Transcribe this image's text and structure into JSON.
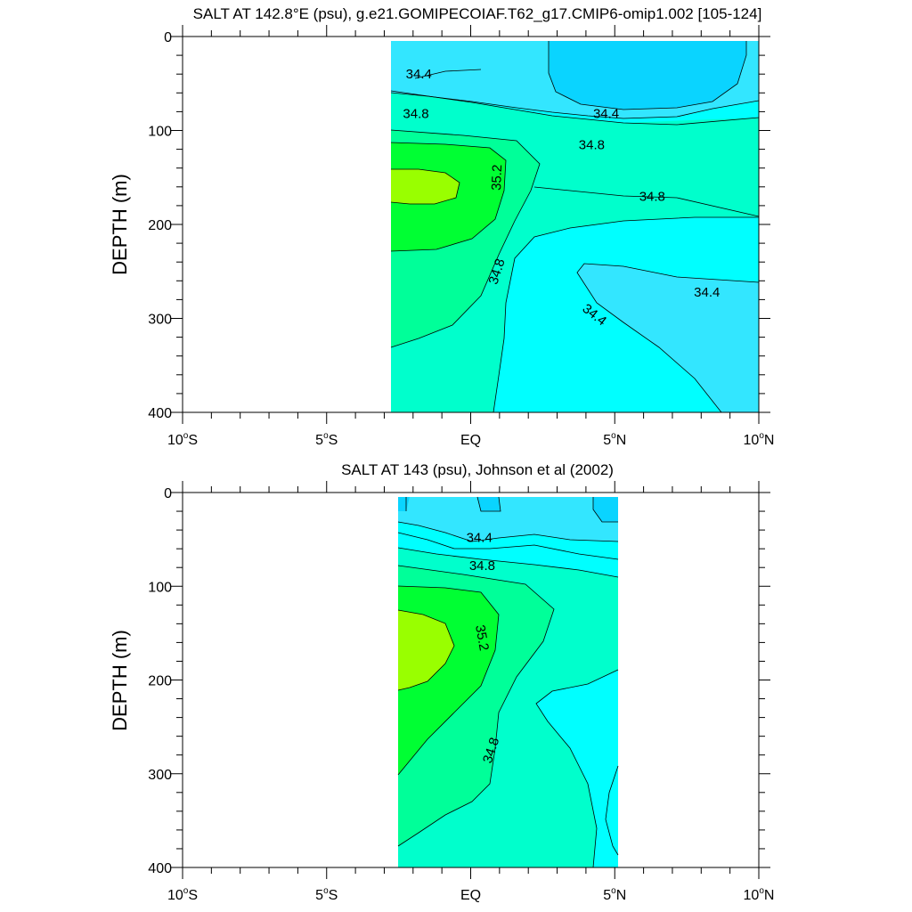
{
  "chart_data": [
    {
      "type": "contour",
      "title": "SALT AT 142.8°E (psu), g.e21.GOMIPECOIAF.T62_g17.CMIP6-omip1.002 [105-124]",
      "xlabel": "",
      "ylabel": "DEPTH (m)",
      "xlim": [
        -10,
        10
      ],
      "ylim": [
        400,
        0
      ],
      "data_extent_x": [
        -3,
        10
      ],
      "x_ticks": [
        {
          "value": -10,
          "deg": "10",
          "hemi": "S"
        },
        {
          "value": -5,
          "deg": "5",
          "hemi": "S"
        },
        {
          "value": 0,
          "deg": "",
          "hemi": "EQ"
        },
        {
          "value": 5,
          "deg": "5",
          "hemi": "N"
        },
        {
          "value": 10,
          "deg": "10",
          "hemi": "N"
        }
      ],
      "y_ticks": [
        0,
        100,
        200,
        300,
        400
      ],
      "fill_colors": {
        "34.2_34.4": "#0ad4ff",
        "34.4_34.6": "#33e6ff",
        "34.6_34.8": "#00ffff",
        "34.8_35.0": "#00ffcc",
        "35.0_35.2": "#00ff99",
        "35.2_35.4": "#00ff33",
        "35.4_35.6": "#99ff00"
      },
      "contour_labels": [
        {
          "text": "34.4",
          "x": -1.8,
          "y": 40,
          "angle": 0
        },
        {
          "text": "34.8",
          "x": -1.9,
          "y": 82,
          "angle": 0
        },
        {
          "text": "34.4",
          "x": 4.7,
          "y": 82,
          "angle": 0
        },
        {
          "text": "34.8",
          "x": 4.2,
          "y": 115,
          "angle": 0
        },
        {
          "text": "35.2",
          "x": 0.9,
          "y": 150,
          "angle": -88
        },
        {
          "text": "34.8",
          "x": 6.3,
          "y": 170,
          "angle": 0
        },
        {
          "text": "34.8",
          "x": 0.9,
          "y": 250,
          "angle": -72
        },
        {
          "text": "34.4",
          "x": 8.2,
          "y": 272,
          "angle": 0
        },
        {
          "text": "34.4",
          "x": 4.3,
          "y": 296,
          "angle": 38
        }
      ]
    },
    {
      "type": "contour",
      "title": "SALT AT 143 (psu), Johnson et al (2002)",
      "xlabel": "",
      "ylabel": "DEPTH (m)",
      "xlim": [
        -10,
        10
      ],
      "ylim": [
        400,
        0
      ],
      "data_extent_x": [
        -2.75,
        5
      ],
      "x_ticks": [
        {
          "value": -10,
          "deg": "10",
          "hemi": "S"
        },
        {
          "value": -5,
          "deg": "5",
          "hemi": "S"
        },
        {
          "value": 0,
          "deg": "",
          "hemi": "EQ"
        },
        {
          "value": 5,
          "deg": "5",
          "hemi": "N"
        },
        {
          "value": 10,
          "deg": "10",
          "hemi": "N"
        }
      ],
      "y_ticks": [
        0,
        100,
        200,
        300,
        400
      ],
      "contour_labels": [
        {
          "text": "34.4",
          "x": 0.3,
          "y": 48,
          "angle": 0
        },
        {
          "text": "34.8",
          "x": 0.4,
          "y": 78,
          "angle": 0
        },
        {
          "text": "35.2",
          "x": 0.4,
          "y": 155,
          "angle": 80
        },
        {
          "text": "34.8",
          "x": 0.7,
          "y": 275,
          "angle": -72
        }
      ]
    }
  ]
}
